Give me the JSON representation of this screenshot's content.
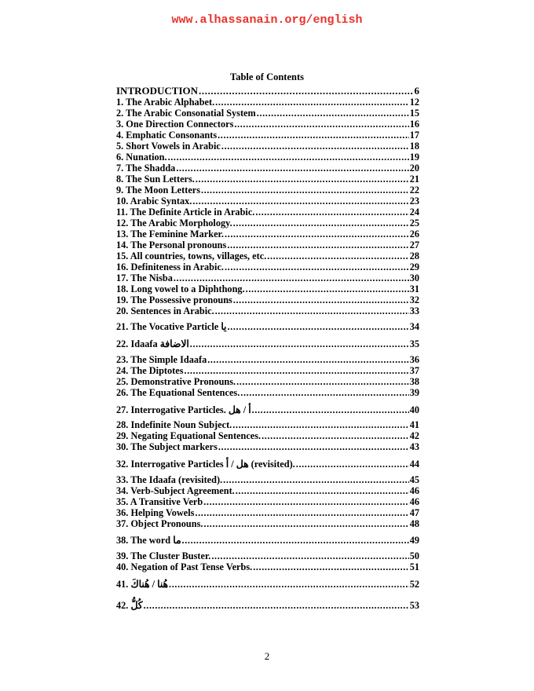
{
  "header": {
    "url": "www.alhassanain.org/english",
    "url_color": "#e8322b"
  },
  "toc": {
    "title": "Table of Contents",
    "entries": [
      {
        "label": "INTRODUCTION",
        "page": "6"
      },
      {
        "label": "1. The Arabic Alphabet.",
        "page": "12"
      },
      {
        "label": "2. The Arabic Consonatial System",
        "page": "15"
      },
      {
        "label": "3. One Direction Connectors",
        "page": "16"
      },
      {
        "label": "4. Emphatic Consonants",
        "page": "17"
      },
      {
        "label": "5. Short Vowels in Arabic",
        "page": "18"
      },
      {
        "label": "6. Nunation.",
        "page": "19"
      },
      {
        "label": "7. The Shadda",
        "page": "20"
      },
      {
        "label": "8. The Sun Letters.",
        "page": "21"
      },
      {
        "label": "9. The Moon Letters",
        "page": "22"
      },
      {
        "label": "10. Arabic Syntax.",
        "page": "23"
      },
      {
        "label": "11. The Definite Article in Arabic.",
        "page": "24"
      },
      {
        "label": "12. The Arabic Morphology.",
        "page": "25"
      },
      {
        "label": "13. The Feminine Marker.",
        "page": "26"
      },
      {
        "label": "14. The Personal pronouns",
        "page": "27"
      },
      {
        "label": "15. All countries, towns, villages, etc.",
        "page": "28"
      },
      {
        "label": "16. Definiteness in Arabic.",
        "page": "29"
      },
      {
        "label": "17. The Nisba",
        "page": "30"
      },
      {
        "label": "18. Long vowel to a Diphthong.",
        "page": "31"
      },
      {
        "label": "19. The Possessive pronouns",
        "page": "32"
      },
      {
        "label": "20. Sentences in Arabic.",
        "page": "33"
      },
      {
        "label": "21. The Vocative Particle يا",
        "page": "34"
      },
      {
        "label": "22. Idaafa الاضافة",
        "page": "35"
      },
      {
        "label": "23. The Simple Idaafa",
        "page": "36"
      },
      {
        "label": "24. The Diptotes",
        "page": "37"
      },
      {
        "label": "25. Demonstrative Pronouns.",
        "page": "38"
      },
      {
        "label": "26. The Equational Sentences.",
        "page": "39"
      },
      {
        "label": "27. Interrogative Particles. أ / هل",
        "page": "40"
      },
      {
        "label": "28. Indefinite Noun Subject.",
        "page": "41"
      },
      {
        "label": "29. Negating Equational Sentences.",
        "page": "42"
      },
      {
        "label": "30. The Subject markers",
        "page": "43"
      },
      {
        "label": "32. Interrogative Particles هل / أ (revisited).",
        "page": "44"
      },
      {
        "label": "33. The Idaafa (revisited).",
        "page": "45"
      },
      {
        "label": "34. Verb-Subject Agreement.",
        "page": "46"
      },
      {
        "label": "35. A Transitive Verb",
        "page": "46"
      },
      {
        "label": "36. Helping Vowels",
        "page": "47"
      },
      {
        "label": "37. Object Pronouns.",
        "page": "48"
      },
      {
        "label": "38. The word ما",
        "page": "49"
      },
      {
        "label": "39. The Cluster Buster.",
        "page": "50"
      },
      {
        "label": "40. Negation of Past Tense Verbs.",
        "page": "51"
      },
      {
        "label": "41. هُنا / هُناكَ",
        "page": "52"
      },
      {
        "label": "42. كُلُّ",
        "page": "53"
      }
    ]
  },
  "footer": {
    "page_number": "2"
  }
}
